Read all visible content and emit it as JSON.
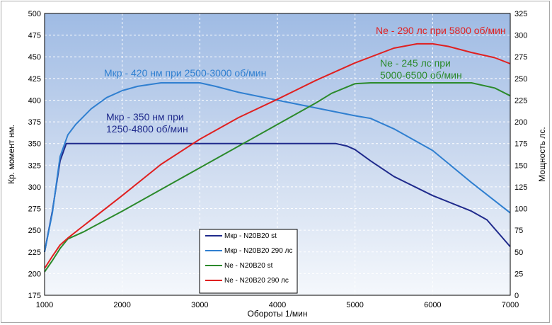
{
  "chart_data": {
    "type": "line",
    "xlabel": "Обороты 1/мин",
    "ylabel_left": "Кр. момент нм.",
    "ylabel_right": "Мощность лс.",
    "xlim": [
      1000,
      7000
    ],
    "ylim_left": [
      175,
      500
    ],
    "ylim_right": [
      0,
      325
    ],
    "x_ticks": [
      1000,
      2000,
      3000,
      4000,
      5000,
      6000,
      7000
    ],
    "y_left_ticks": [
      175,
      200,
      225,
      250,
      275,
      300,
      325,
      350,
      375,
      400,
      425,
      450,
      475,
      500
    ],
    "y_right_ticks": [
      0,
      25,
      50,
      75,
      100,
      125,
      150,
      175,
      200,
      225,
      250,
      275,
      300,
      325
    ],
    "grid": true,
    "legend_placement": "bottom-center",
    "series": [
      {
        "name": "Мкр - N20B20 st",
        "axis": "left",
        "color": "#1f2a8c",
        "points": [
          [
            1000,
            225
          ],
          [
            1100,
            272
          ],
          [
            1200,
            330
          ],
          [
            1280,
            350
          ],
          [
            1500,
            350
          ],
          [
            2000,
            350
          ],
          [
            2500,
            350
          ],
          [
            3000,
            350
          ],
          [
            3500,
            350
          ],
          [
            4000,
            350
          ],
          [
            4500,
            350
          ],
          [
            4750,
            350
          ],
          [
            4900,
            347
          ],
          [
            5000,
            343
          ],
          [
            5200,
            330
          ],
          [
            5500,
            312
          ],
          [
            6000,
            290
          ],
          [
            6500,
            272
          ],
          [
            6700,
            262
          ],
          [
            7000,
            231
          ]
        ]
      },
      {
        "name": "Мкр - N20B20 290 лс",
        "axis": "left",
        "color": "#2f7fd0",
        "points": [
          [
            1000,
            225
          ],
          [
            1100,
            270
          ],
          [
            1200,
            335
          ],
          [
            1300,
            360
          ],
          [
            1400,
            372
          ],
          [
            1600,
            390
          ],
          [
            1800,
            403
          ],
          [
            2000,
            411
          ],
          [
            2200,
            416
          ],
          [
            2500,
            420
          ],
          [
            3000,
            420
          ],
          [
            3200,
            416
          ],
          [
            3500,
            409
          ],
          [
            4000,
            400
          ],
          [
            4500,
            391
          ],
          [
            5000,
            382
          ],
          [
            5200,
            379
          ],
          [
            5500,
            367
          ],
          [
            6000,
            342
          ],
          [
            6500,
            305
          ],
          [
            7000,
            270
          ]
        ]
      },
      {
        "name": "Ne  - N20B20 st",
        "axis": "right",
        "color": "#2b8a2b",
        "points": [
          [
            1000,
            27
          ],
          [
            1100,
            40
          ],
          [
            1200,
            54
          ],
          [
            1300,
            65
          ],
          [
            1500,
            73
          ],
          [
            2000,
            97
          ],
          [
            2500,
            122
          ],
          [
            3000,
            147
          ],
          [
            3500,
            172
          ],
          [
            4000,
            197
          ],
          [
            4500,
            222
          ],
          [
            4700,
            233
          ],
          [
            5000,
            244
          ],
          [
            5200,
            245
          ],
          [
            6000,
            245
          ],
          [
            6500,
            245
          ],
          [
            6800,
            239
          ],
          [
            7000,
            230
          ]
        ]
      },
      {
        "name": "Ne - N20B20 290 лс",
        "axis": "right",
        "color": "#e02020",
        "points": [
          [
            1000,
            31
          ],
          [
            1100,
            45
          ],
          [
            1200,
            58
          ],
          [
            1300,
            66
          ],
          [
            1500,
            80
          ],
          [
            2000,
            115
          ],
          [
            2500,
            151
          ],
          [
            3000,
            180
          ],
          [
            3500,
            205
          ],
          [
            4000,
            226
          ],
          [
            4500,
            248
          ],
          [
            5000,
            268
          ],
          [
            5500,
            285
          ],
          [
            5800,
            290
          ],
          [
            6000,
            290
          ],
          [
            6200,
            287
          ],
          [
            6500,
            280
          ],
          [
            6800,
            274
          ],
          [
            7000,
            267
          ]
        ]
      }
    ],
    "annotations": [
      {
        "lines": [
          "Мкр - 420 нм при 2500-3000 об/мин"
        ],
        "color": "#2f7fd0"
      },
      {
        "lines": [
          "Мкр - 350 нм при",
          "1250-4800 об/мин"
        ],
        "color": "#1f2a8c"
      },
      {
        "lines": [
          "Ne - 290 лс при 5800 об/мин"
        ],
        "color": "#e02020"
      },
      {
        "lines": [
          "Ne - 245 лс при",
          "5000-6500 об/мин"
        ],
        "color": "#2b8a2b"
      }
    ]
  }
}
